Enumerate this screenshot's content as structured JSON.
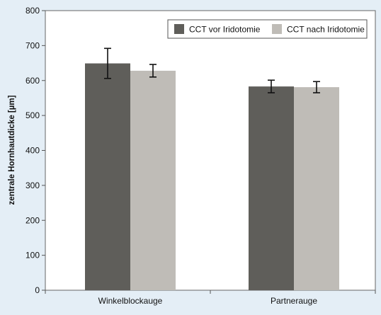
{
  "chart_data": {
    "type": "bar",
    "ylabel": "zentrale Hornhautdicke [µm]",
    "xlabel": "",
    "ylim": [
      0,
      800
    ],
    "yticks": [
      0,
      100,
      200,
      300,
      400,
      500,
      600,
      700,
      800
    ],
    "categories": [
      "Winkelblockauge",
      "Partnerauge"
    ],
    "series": [
      {
        "name": "CCT vor Iridotomie",
        "color": "#5f5e5a",
        "values": [
          649,
          583
        ],
        "error": [
          43,
          18
        ]
      },
      {
        "name": "CCT nach Iridotomie",
        "color": "#bfbcb7",
        "values": [
          628,
          581
        ],
        "error": [
          18,
          16
        ]
      }
    ],
    "grid": false,
    "legend_position": "top-right"
  },
  "colors": {
    "page_background": "#e4eef6",
    "plot_background": "#ffffff",
    "axis": "#555555",
    "error_bar": "#111111"
  }
}
